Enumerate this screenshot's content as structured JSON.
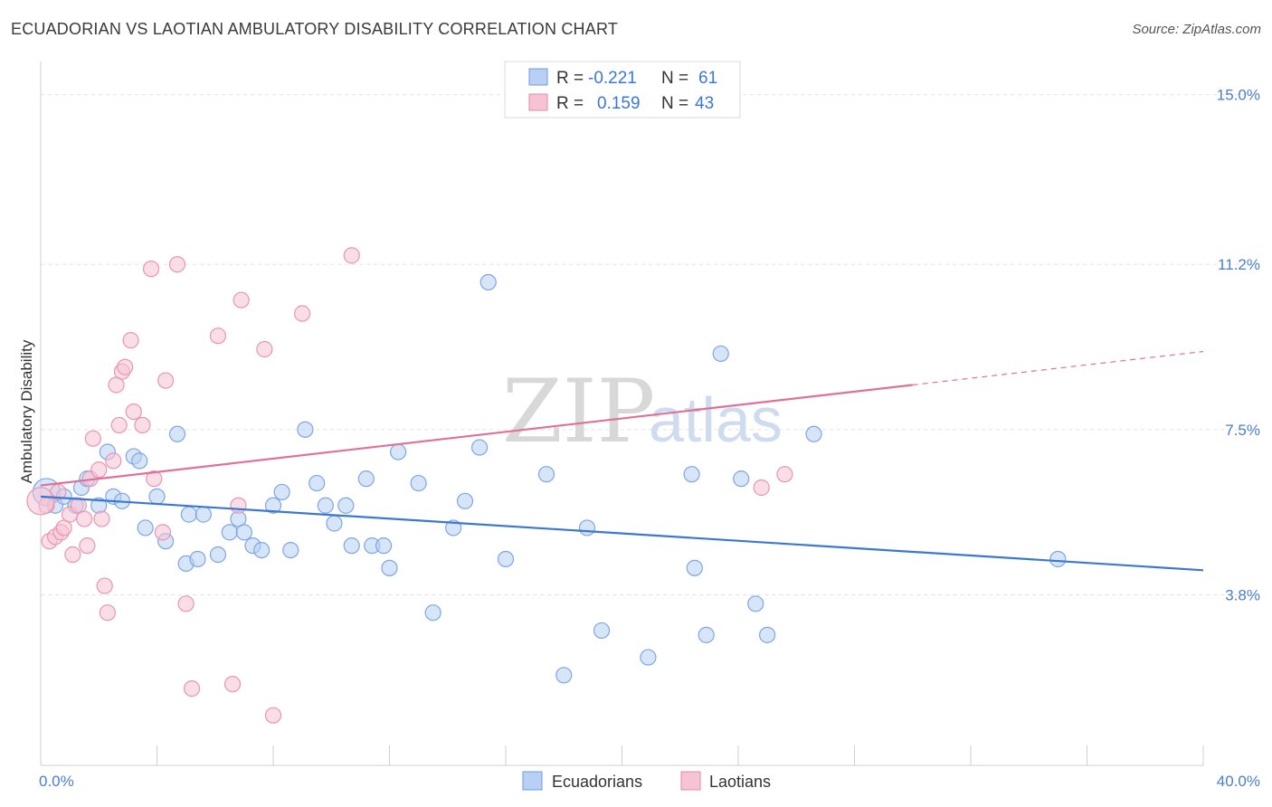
{
  "title": "ECUADORIAN VS LAOTIAN AMBULATORY DISABILITY CORRELATION CHART",
  "source": "Source: ZipAtlas.com",
  "watermark": {
    "zip": "ZIP",
    "atlas": "atlas"
  },
  "colors": {
    "blue": "#3a78d4",
    "pink": "#e07098",
    "blue_fill": "#b7d0f3",
    "pink_fill": "#f6c3d4",
    "tick": "#4a7fd0"
  },
  "legend": {
    "rows": [
      {
        "r_label": "R =",
        "r_value": "-0.221",
        "n_label": "N =",
        "n_value": "61"
      },
      {
        "r_label": "R =",
        "r_value": "0.159",
        "n_label": "N =",
        "n_value": "43"
      }
    ]
  },
  "chart_data": {
    "type": "scatter",
    "xlabel": "",
    "ylabel": "Ambulatory Disability",
    "xlim": [
      0,
      40
    ],
    "ylim": [
      0,
      15.5
    ],
    "x_ticks": [
      "0.0%",
      "40.0%"
    ],
    "y_ticks": [
      {
        "value": 3.8,
        "label": "3.8%"
      },
      {
        "value": 7.5,
        "label": "7.5%"
      },
      {
        "value": 11.2,
        "label": "11.2%"
      },
      {
        "value": 15.0,
        "label": "15.0%"
      }
    ],
    "grid": true,
    "legend_position": "bottom-center",
    "series": [
      {
        "name": "Ecuadorians",
        "color": "#3a78d4",
        "trend": {
          "x0": 0,
          "y0": 6.0,
          "x1": 40,
          "y1": 4.35
        },
        "points": [
          [
            0.2,
            6.1
          ],
          [
            0.5,
            5.8
          ],
          [
            0.8,
            6.0
          ],
          [
            1.2,
            5.8
          ],
          [
            1.4,
            6.2
          ],
          [
            1.6,
            6.4
          ],
          [
            2.0,
            5.8
          ],
          [
            2.3,
            7.0
          ],
          [
            2.5,
            6.0
          ],
          [
            2.8,
            5.9
          ],
          [
            3.2,
            6.9
          ],
          [
            3.4,
            6.8
          ],
          [
            3.6,
            5.3
          ],
          [
            4.0,
            6.0
          ],
          [
            4.3,
            5.0
          ],
          [
            4.7,
            7.4
          ],
          [
            5.0,
            4.5
          ],
          [
            5.1,
            5.6
          ],
          [
            5.4,
            4.6
          ],
          [
            5.6,
            5.6
          ],
          [
            6.1,
            4.7
          ],
          [
            6.5,
            5.2
          ],
          [
            6.8,
            5.5
          ],
          [
            7.0,
            5.2
          ],
          [
            7.3,
            4.9
          ],
          [
            7.6,
            4.8
          ],
          [
            8.0,
            5.8
          ],
          [
            8.3,
            6.1
          ],
          [
            8.6,
            4.8
          ],
          [
            9.1,
            7.5
          ],
          [
            9.5,
            6.3
          ],
          [
            9.8,
            5.8
          ],
          [
            10.1,
            5.4
          ],
          [
            10.5,
            5.8
          ],
          [
            10.7,
            4.9
          ],
          [
            11.2,
            6.4
          ],
          [
            11.4,
            4.9
          ],
          [
            11.8,
            4.9
          ],
          [
            12.0,
            4.4
          ],
          [
            12.3,
            7.0
          ],
          [
            13.0,
            6.3
          ],
          [
            13.5,
            3.4
          ],
          [
            14.2,
            5.3
          ],
          [
            14.6,
            5.9
          ],
          [
            15.1,
            7.1
          ],
          [
            15.4,
            10.8
          ],
          [
            16.0,
            4.6
          ],
          [
            17.4,
            6.5
          ],
          [
            18.0,
            2.0
          ],
          [
            18.8,
            5.3
          ],
          [
            19.3,
            3.0
          ],
          [
            20.9,
            2.4
          ],
          [
            22.4,
            6.5
          ],
          [
            22.5,
            4.4
          ],
          [
            22.9,
            2.9
          ],
          [
            23.4,
            9.2
          ],
          [
            24.1,
            6.4
          ],
          [
            24.6,
            3.6
          ],
          [
            25.0,
            2.9
          ],
          [
            26.6,
            7.4
          ],
          [
            35.0,
            4.6
          ]
        ]
      },
      {
        "name": "Laotians",
        "color": "#e07098",
        "trend": {
          "x0": 0,
          "y0": 6.25,
          "x1": 30,
          "y1": 8.5
        },
        "trend_dashed": {
          "x0": 30,
          "y0": 8.5,
          "x1": 40,
          "y1": 9.25
        },
        "points": [
          [
            0.2,
            5.8
          ],
          [
            0.3,
            5.0
          ],
          [
            0.5,
            5.1
          ],
          [
            0.6,
            6.1
          ],
          [
            0.7,
            5.2
          ],
          [
            0.8,
            5.3
          ],
          [
            1.0,
            5.6
          ],
          [
            1.1,
            4.7
          ],
          [
            1.3,
            5.8
          ],
          [
            1.5,
            5.5
          ],
          [
            1.6,
            4.9
          ],
          [
            1.7,
            6.4
          ],
          [
            1.8,
            7.3
          ],
          [
            2.0,
            6.6
          ],
          [
            2.1,
            5.5
          ],
          [
            2.2,
            4.0
          ],
          [
            2.3,
            3.4
          ],
          [
            2.5,
            6.8
          ],
          [
            2.6,
            8.5
          ],
          [
            2.7,
            7.6
          ],
          [
            2.8,
            8.8
          ],
          [
            2.9,
            8.9
          ],
          [
            3.1,
            9.5
          ],
          [
            3.2,
            7.9
          ],
          [
            3.5,
            7.6
          ],
          [
            3.8,
            11.1
          ],
          [
            3.9,
            6.4
          ],
          [
            4.2,
            5.2
          ],
          [
            4.3,
            8.6
          ],
          [
            4.7,
            11.2
          ],
          [
            5.0,
            3.6
          ],
          [
            5.2,
            1.7
          ],
          [
            6.1,
            9.6
          ],
          [
            6.6,
            1.8
          ],
          [
            6.8,
            5.8
          ],
          [
            6.9,
            10.4
          ],
          [
            7.7,
            9.3
          ],
          [
            8.0,
            1.1
          ],
          [
            9.0,
            10.1
          ],
          [
            10.7,
            11.4
          ],
          [
            24.8,
            6.2
          ],
          [
            25.6,
            6.5
          ],
          [
            0.0,
            5.9
          ]
        ]
      }
    ]
  }
}
